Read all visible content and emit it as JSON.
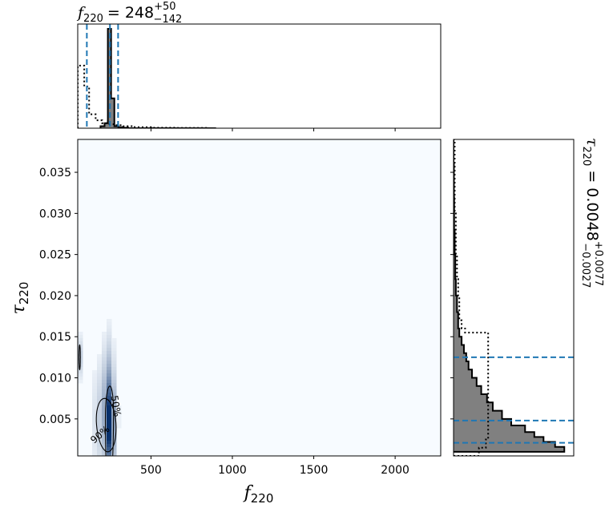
{
  "chart_data": [
    {
      "panel": "top-marginal",
      "type": "histogram",
      "title": {
        "var": "f",
        "sub": "220",
        "median": "= 248",
        "plus": "+50",
        "minus": "−142"
      },
      "xlim": [
        50,
        2280
      ],
      "bins_x": [
        190,
        215,
        235,
        255,
        275,
        300,
        330,
        360,
        400,
        460,
        520,
        600,
        700,
        800,
        900
      ],
      "posterior": [
        0.02,
        0.05,
        1.0,
        0.3,
        0.02,
        0.01,
        0.005,
        0,
        0,
        0,
        0,
        0,
        0,
        0
      ],
      "prior_bins_x": [
        50,
        90,
        120,
        160,
        200,
        240,
        280,
        330,
        400,
        500,
        650,
        850
      ],
      "prior": [
        0.63,
        0.42,
        0.14,
        0.08,
        0.05,
        0.04,
        0.03,
        0.02,
        0.01,
        0.005,
        0.003
      ],
      "quantile_lines": [
        106,
        248,
        298
      ],
      "colors": {
        "posterior_fill": "#808080",
        "edge": "#000000",
        "quantile": "#1f77b4"
      }
    },
    {
      "panel": "joint",
      "type": "heatmap",
      "xlabel": {
        "var": "f",
        "sub": "220"
      },
      "ylabel": {
        "var": "τ",
        "sub": "220"
      },
      "xlim": [
        50,
        2280
      ],
      "ylim": [
        0.0005,
        0.039
      ],
      "xticks": [
        500,
        1000,
        1500,
        2000
      ],
      "yticks": [
        0.005,
        0.01,
        0.015,
        0.02,
        0.025,
        0.03,
        0.035
      ],
      "ytick_labels": [
        "0.005",
        "0.010",
        "0.015",
        "0.020",
        "0.025",
        "0.030",
        "0.035"
      ],
      "contour_labels": [
        "50%",
        "90%"
      ],
      "blobs": [
        {
          "x": 250,
          "y": 0.004,
          "sx": 12,
          "sy": 0.0028,
          "w": 1.0
        },
        {
          "x": 240,
          "y": 0.007,
          "sx": 18,
          "sy": 0.004,
          "w": 0.35
        },
        {
          "x": 215,
          "y": 0.005,
          "sx": 40,
          "sy": 0.004,
          "w": 0.15
        },
        {
          "x": 62,
          "y": 0.0125,
          "sx": 7,
          "sy": 0.0015,
          "w": 0.12
        }
      ],
      "colors": {
        "cmap_low": "#f7fbff",
        "cmap_high": "#08306b",
        "contour": "#000000"
      }
    },
    {
      "panel": "right-marginal",
      "type": "histogram",
      "orientation": "horizontal",
      "title": {
        "var": "τ",
        "sub": "220",
        "median": "= 0.0048",
        "plus": "+0.0077",
        "minus": "−0.0027"
      },
      "ylim": [
        0.0005,
        0.039
      ],
      "bins_y": [
        0.001,
        0.0016,
        0.0022,
        0.0028,
        0.0034,
        0.0042,
        0.005,
        0.006,
        0.007,
        0.008,
        0.009,
        0.01,
        0.011,
        0.012,
        0.013,
        0.014,
        0.015,
        0.016,
        0.018,
        0.02,
        0.022,
        0.025,
        0.028,
        0.032,
        0.036,
        0.039
      ],
      "posterior": [
        0.96,
        0.88,
        0.78,
        0.7,
        0.62,
        0.5,
        0.42,
        0.34,
        0.29,
        0.24,
        0.2,
        0.16,
        0.13,
        0.11,
        0.09,
        0.07,
        0.05,
        0.04,
        0.03,
        0.02,
        0.015,
        0.01,
        0.005,
        0.003,
        0.0
      ],
      "prior_bins_y": [
        0.0005,
        0.0015,
        0.0025,
        0.003,
        0.01,
        0.0155,
        0.016,
        0.017,
        0.02,
        0.022,
        0.025,
        0.03,
        0.039
      ],
      "prior": [
        0.22,
        0.28,
        0.3,
        0.3,
        0.3,
        0.1,
        0.07,
        0.05,
        0.04,
        0.03,
        0.02,
        0.01
      ],
      "quantile_lines": [
        0.0021,
        0.0048,
        0.0125
      ],
      "colors": {
        "posterior_fill": "#808080",
        "edge": "#000000",
        "quantile": "#1f77b4"
      }
    }
  ]
}
